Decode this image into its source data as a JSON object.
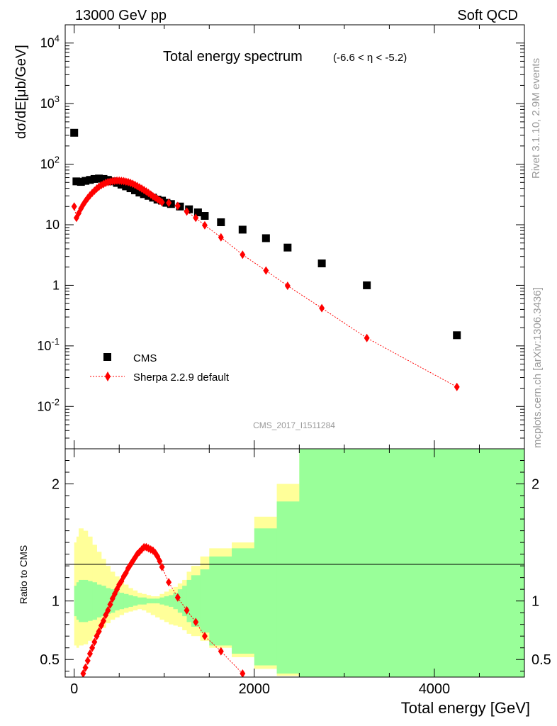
{
  "header": {
    "left": "13000 GeV pp",
    "right": "Soft QCD"
  },
  "side_labels": {
    "rivet": "Rivet 3.1.10,  2.9M events",
    "source": "mcplots.cern.ch [arXiv:1306.3436]"
  },
  "chart_data": [
    {
      "type": "scatter",
      "title": "Total energy spectrum",
      "title_suffix": "(-6.6 < η < -5.2)",
      "watermark": "CMS_2017_I1511284",
      "ylabel": "dσ/dE[μb/GeV]",
      "yscale": "log",
      "ylim": [
        0.002,
        20000
      ],
      "xlim": [
        -100,
        5000
      ],
      "ytick_labels": [
        "10^-2",
        "10^-1",
        "1",
        "10",
        "10^2",
        "10^3",
        "10^4"
      ],
      "legend": {
        "placement": "lower-left",
        "entries": [
          "CMS",
          "Sherpa 2.2.9 default"
        ]
      },
      "series": [
        {
          "name": "CMS",
          "marker": "square",
          "color": "#000000",
          "points": [
            [
              0,
              330
            ],
            [
              25,
              52
            ],
            [
              75,
              51
            ],
            [
              125,
              53
            ],
            [
              175,
              55
            ],
            [
              225,
              57
            ],
            [
              275,
              58
            ],
            [
              325,
              57
            ],
            [
              375,
              55
            ],
            [
              425,
              52
            ],
            [
              475,
              49
            ],
            [
              525,
              46
            ],
            [
              575,
              43
            ],
            [
              625,
              40
            ],
            [
              675,
              37
            ],
            [
              725,
              34
            ],
            [
              775,
              32
            ],
            [
              825,
              30
            ],
            [
              875,
              28
            ],
            [
              925,
              26
            ],
            [
              975,
              25
            ],
            [
              1025,
              23
            ],
            [
              1075,
              22
            ],
            [
              1175,
              20
            ],
            [
              1275,
              18
            ],
            [
              1375,
              16
            ],
            [
              1450,
              14
            ],
            [
              1630,
              11
            ],
            [
              1870,
              8.3
            ],
            [
              2130,
              6.0
            ],
            [
              2370,
              4.2
            ],
            [
              2750,
              2.3
            ],
            [
              3250,
              1.0
            ],
            [
              4250,
              0.15
            ]
          ]
        },
        {
          "name": "Sherpa 2.2.9 default",
          "marker": "diamond",
          "color": "#ff0000",
          "points": [
            [
              0,
              20
            ],
            [
              25,
              13
            ],
            [
              50,
              15.5
            ],
            [
              75,
              18.5
            ],
            [
              100,
              21.5
            ],
            [
              125,
              24.5
            ],
            [
              150,
              27.5
            ],
            [
              175,
              30.5
            ],
            [
              200,
              33.5
            ],
            [
              225,
              36.5
            ],
            [
              250,
              39.5
            ],
            [
              275,
              42.5
            ],
            [
              300,
              45
            ],
            [
              325,
              47
            ],
            [
              350,
              49
            ],
            [
              375,
              50.5
            ],
            [
              400,
              51.5
            ],
            [
              425,
              52.5
            ],
            [
              450,
              53
            ],
            [
              475,
              53.5
            ],
            [
              500,
              53.5
            ],
            [
              525,
              53
            ],
            [
              550,
              52.5
            ],
            [
              575,
              51.5
            ],
            [
              600,
              50.5
            ],
            [
              625,
              49
            ],
            [
              650,
              47.5
            ],
            [
              675,
              45.5
            ],
            [
              700,
              43.5
            ],
            [
              725,
              41.5
            ],
            [
              750,
              39.5
            ],
            [
              775,
              37.5
            ],
            [
              800,
              35.5
            ],
            [
              825,
              33.5
            ],
            [
              850,
              31.5
            ],
            [
              875,
              29.5
            ],
            [
              900,
              28
            ],
            [
              925,
              26.5
            ],
            [
              950,
              25
            ],
            [
              975,
              23.5
            ],
            [
              1050,
              23
            ],
            [
              1150,
              20.5
            ],
            [
              1250,
              16.5
            ],
            [
              1350,
              13
            ],
            [
              1450,
              9.8
            ],
            [
              1630,
              6.2
            ],
            [
              1870,
              3.2
            ],
            [
              2130,
              1.75
            ],
            [
              2370,
              0.98
            ],
            [
              2750,
              0.42
            ],
            [
              3250,
              0.135
            ],
            [
              4250,
              0.021
            ]
          ]
        }
      ]
    },
    {
      "type": "line",
      "ylabel": "Ratio to CMS",
      "xlabel": "Total energy [GeV]",
      "ylim": [
        0.35,
        2.3
      ],
      "xlim": [
        -100,
        5000
      ],
      "ytick_labels": [
        "0.5",
        "1",
        "2"
      ],
      "xtick_labels": [
        "0",
        "2000",
        "4000"
      ],
      "reference_line": 1,
      "bands": {
        "colors": {
          "inner": "#99ff99",
          "outer": "#ffff99"
        },
        "edges": [
          0,
          25,
          50,
          100,
          150,
          200,
          250,
          300,
          350,
          400,
          450,
          500,
          550,
          600,
          650,
          700,
          750,
          800,
          850,
          900,
          950,
          1000,
          1050,
          1100,
          1150,
          1200,
          1250,
          1300,
          1400,
          1500,
          1750,
          2000,
          2250,
          2500,
          3000,
          3500,
          5000
        ],
        "inner_low": [
          0.87,
          0.84,
          0.82,
          0.82,
          0.83,
          0.84,
          0.86,
          0.87,
          0.89,
          0.9,
          0.92,
          0.93,
          0.94,
          0.95,
          0.96,
          0.97,
          0.97,
          0.98,
          0.98,
          0.98,
          0.97,
          0.96,
          0.95,
          0.93,
          0.9,
          0.87,
          0.82,
          0.78,
          0.73,
          0.62,
          0.55,
          0.45,
          0.38,
          0.35,
          0.35,
          0.35
        ],
        "inner_high": [
          1.13,
          1.16,
          1.18,
          1.18,
          1.17,
          1.16,
          1.14,
          1.13,
          1.11,
          1.1,
          1.08,
          1.07,
          1.06,
          1.05,
          1.04,
          1.03,
          1.03,
          1.02,
          1.02,
          1.02,
          1.03,
          1.04,
          1.05,
          1.07,
          1.1,
          1.13,
          1.18,
          1.22,
          1.27,
          1.38,
          1.45,
          1.62,
          1.85,
          2.3,
          2.3,
          2.3
        ],
        "outer_low": [
          0.62,
          0.6,
          0.62,
          0.63,
          0.66,
          0.7,
          0.73,
          0.77,
          0.81,
          0.84,
          0.86,
          0.88,
          0.9,
          0.91,
          0.92,
          0.93,
          0.92,
          0.9,
          0.88,
          0.86,
          0.84,
          0.82,
          0.8,
          0.79,
          0.78,
          0.75,
          0.72,
          0.7,
          0.66,
          0.6,
          0.52,
          0.42,
          0.36,
          0.35,
          0.35,
          0.35
        ],
        "outer_high": [
          1.5,
          1.55,
          1.62,
          1.6,
          1.55,
          1.48,
          1.42,
          1.36,
          1.3,
          1.25,
          1.21,
          1.17,
          1.14,
          1.11,
          1.09,
          1.07,
          1.06,
          1.05,
          1.04,
          1.04,
          1.06,
          1.08,
          1.1,
          1.12,
          1.15,
          1.18,
          1.25,
          1.3,
          1.38,
          1.45,
          1.5,
          1.72,
          2.0,
          2.3,
          2.3,
          2.3
        ]
      },
      "series": [
        {
          "name": "Sherpa 2.2.9 default",
          "marker": "diamond",
          "color": "#ff0000",
          "points": [
            [
              100,
              0.38
            ],
            [
              125,
              0.43
            ],
            [
              150,
              0.49
            ],
            [
              175,
              0.55
            ],
            [
              200,
              0.6
            ],
            [
              225,
              0.65
            ],
            [
              250,
              0.7
            ],
            [
              275,
              0.74
            ],
            [
              300,
              0.79
            ],
            [
              325,
              0.83
            ],
            [
              350,
              0.88
            ],
            [
              375,
              0.92
            ],
            [
              400,
              0.97
            ],
            [
              425,
              1.02
            ],
            [
              450,
              1.06
            ],
            [
              475,
              1.1
            ],
            [
              500,
              1.14
            ],
            [
              525,
              1.17
            ],
            [
              550,
              1.21
            ],
            [
              575,
              1.24
            ],
            [
              600,
              1.28
            ],
            [
              625,
              1.31
            ],
            [
              650,
              1.34
            ],
            [
              675,
              1.37
            ],
            [
              700,
              1.4
            ],
            [
              725,
              1.42
            ],
            [
              750,
              1.44
            ],
            [
              775,
              1.46
            ],
            [
              800,
              1.46
            ],
            [
              825,
              1.45
            ],
            [
              850,
              1.44
            ],
            [
              875,
              1.43
            ],
            [
              900,
              1.41
            ],
            [
              925,
              1.38
            ],
            [
              950,
              1.34
            ],
            [
              975,
              1.29
            ],
            [
              1050,
              1.16
            ],
            [
              1150,
              1.03
            ],
            [
              1250,
              0.92
            ],
            [
              1350,
              0.82
            ],
            [
              1450,
              0.7
            ],
            [
              1630,
              0.57
            ],
            [
              1870,
              0.38
            ]
          ]
        }
      ]
    }
  ]
}
